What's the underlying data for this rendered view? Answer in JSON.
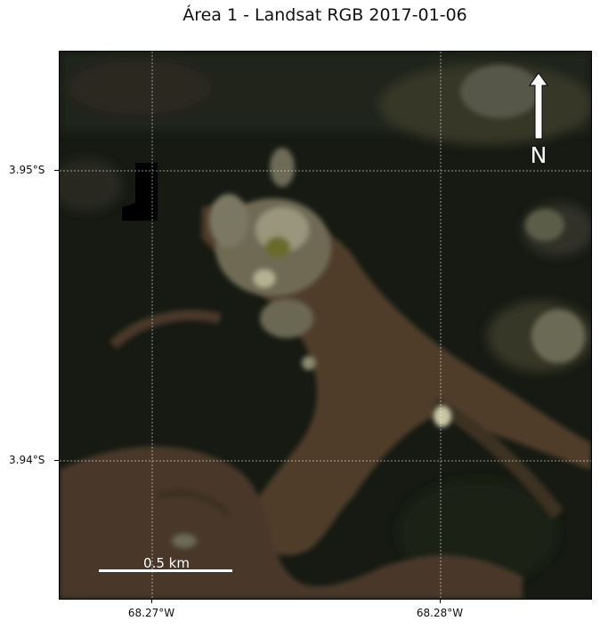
{
  "title": "Área 1 - Landsat RGB 2017-01-06",
  "north_arrow": {
    "label": "N",
    "icon": "north-arrow-icon"
  },
  "scale_bar": {
    "label": "0.5 km"
  },
  "axes": {
    "x_ticks": [
      "68.27°W",
      "68.28°W"
    ],
    "y_ticks": [
      "3.95°S",
      "3.94°S"
    ]
  },
  "grid": true,
  "colors": {
    "forest_dark": "#161a12",
    "forest_mid": "#2a2d1f",
    "river_brown": "#5a4432",
    "clearing_light": "#8b8a6e",
    "bright_patch": "#c9c6a6"
  }
}
